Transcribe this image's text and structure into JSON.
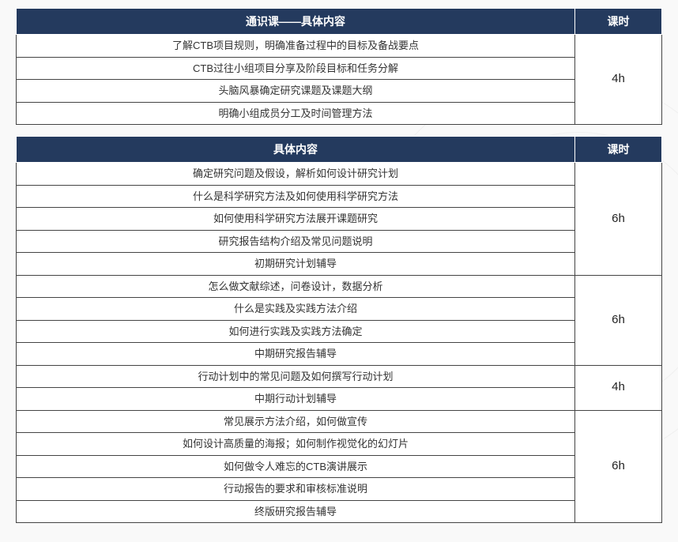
{
  "tables": [
    {
      "header_content": "通识课——具体内容",
      "header_hours": "课时",
      "groups": [
        {
          "hours": "4h",
          "rows": [
            "了解CTB项目规则，明确准备过程中的目标及备战要点",
            "CTB过往小组项目分享及阶段目标和任务分解",
            "头脑风暴确定研究课题及课题大纲",
            "明确小组成员分工及时间管理方法"
          ]
        }
      ]
    },
    {
      "header_content": "具体内容",
      "header_hours": "课时",
      "groups": [
        {
          "hours": "6h",
          "rows": [
            "确定研究问题及假设，解析如何设计研究计划",
            "什么是科学研究方法及如何使用科学研究方法",
            "如何使用科学研究方法展开课题研究",
            "研究报告结构介绍及常见问题说明",
            "初期研究计划辅导"
          ]
        },
        {
          "hours": "6h",
          "rows": [
            "怎么做文献综述，问卷设计，数据分析",
            "什么是实践及实践方法介绍",
            "如何进行实践及实践方法确定",
            "中期研究报告辅导"
          ]
        },
        {
          "hours": "4h",
          "rows": [
            "行动计划中的常见问题及如何撰写行动计划",
            "中期行动计划辅导"
          ]
        },
        {
          "hours": "6h",
          "rows": [
            "常见展示方法介绍，如何做宣传",
            "如何设计高质量的海报；如何制作视觉化的幻灯片",
            "如何做令人难忘的CTB演讲展示",
            "行动报告的要求和审核标准说明",
            "终版研究报告辅导"
          ]
        }
      ]
    }
  ],
  "colors": {
    "header_bg": "#243a5e",
    "header_text": "#ffffff",
    "cell_border": "#444444",
    "cell_bg": "#ffffff",
    "page_bg": "#f9f9f9"
  }
}
